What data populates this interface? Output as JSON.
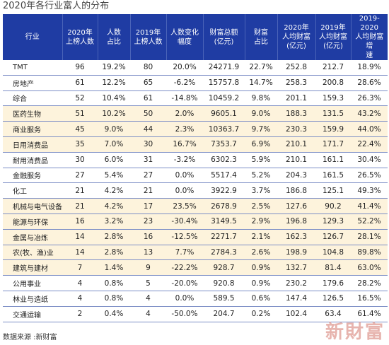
{
  "title": "2020年各行业富人的分布",
  "headers": [
    "行业",
    "2020年\n上榜人数",
    "人数\n占比",
    "2019年\n上榜人数",
    "人数变化\n幅度",
    "财富总额\n(亿元)",
    "财富\n占比",
    "2020年\n人均财富\n(亿元)",
    "2019年\n人均财富\n(亿元)",
    "2019-2020\n人均财富增\n速"
  ],
  "rows": [
    [
      "TMT",
      "96",
      "19.2%",
      "80",
      "20.0%",
      "24271.9",
      "22.7%",
      "252.8",
      "212.7",
      "18.9%"
    ],
    [
      "房地产",
      "61",
      "12.2%",
      "65",
      "-6.2%",
      "15757.8",
      "14.7%",
      "258.3",
      "200.8",
      "28.6%"
    ],
    [
      "综合",
      "52",
      "10.4%",
      "61",
      "-14.8%",
      "10459.2",
      "9.8%",
      "201.1",
      "159.3",
      "26.3%"
    ],
    [
      "医药生物",
      "51",
      "10.2%",
      "50",
      "2.0%",
      "9605.1",
      "9.0%",
      "188.3",
      "131.5",
      "43.2%"
    ],
    [
      "商业服务",
      "45",
      "9.0%",
      "44",
      "2.3%",
      "10363.7",
      "9.7%",
      "230.3",
      "159.9",
      "44.0%"
    ],
    [
      "日用消费品",
      "35",
      "7.0%",
      "30",
      "16.7%",
      "7353.7",
      "6.9%",
      "210.1",
      "171.7",
      "22.4%"
    ],
    [
      "耐用消费品",
      "30",
      "6.0%",
      "31",
      "-3.2%",
      "6302.3",
      "5.9%",
      "210.1",
      "161.1",
      "30.4%"
    ],
    [
      "金融服务",
      "27",
      "5.4%",
      "27",
      "0.0%",
      "5517.4",
      "5.2%",
      "204.3",
      "161.5",
      "26.5%"
    ],
    [
      "化工",
      "21",
      "4.2%",
      "21",
      "0.0%",
      "3922.9",
      "3.7%",
      "186.8",
      "125.1",
      "49.3%"
    ],
    [
      "机械与电气设备",
      "21",
      "4.2%",
      "17",
      "23.5%",
      "2678.9",
      "2.5%",
      "127.6",
      "90.2",
      "41.4%"
    ],
    [
      "能源与环保",
      "16",
      "3.2%",
      "23",
      "-30.4%",
      "3149.5",
      "2.9%",
      "196.8",
      "129.3",
      "52.2%"
    ],
    [
      "金属与冶炼",
      "14",
      "2.8%",
      "16",
      "-12.5%",
      "2271.7",
      "2.1%",
      "162.3",
      "126.7",
      "28.1%"
    ],
    [
      "农(牧、渔)业",
      "14",
      "2.8%",
      "13",
      "7.7%",
      "2784.3",
      "2.6%",
      "198.9",
      "104.8",
      "89.8%"
    ],
    [
      "建筑与建材",
      "7",
      "1.4%",
      "9",
      "-22.2%",
      "928.7",
      "0.9%",
      "132.7",
      "81.4",
      "63.0%"
    ],
    [
      "公用事业",
      "4",
      "0.8%",
      "5",
      "-20.0%",
      "920.8",
      "0.9%",
      "230.2",
      "179.6",
      "28.2%"
    ],
    [
      "林业与造纸",
      "4",
      "0.8%",
      "4",
      "0.0%",
      "589.5",
      "0.6%",
      "147.4",
      "126.5",
      "16.5%"
    ],
    [
      "交通运输",
      "2",
      "0.4%",
      "4",
      "-50.0%",
      "204.7",
      "0.2%",
      "102.4",
      "63.4",
      "61.4%"
    ]
  ],
  "highlight_rows": [
    3,
    4,
    5,
    9,
    10,
    11,
    12,
    13
  ],
  "source": "数据来源 :新财富",
  "watermark": "新財富",
  "colors": {
    "header_bg": "#1f3ca3",
    "highlight_bg": "#fdf3dc",
    "row_rule": "#7c8ec6",
    "watermark": "#e3a7a0"
  }
}
